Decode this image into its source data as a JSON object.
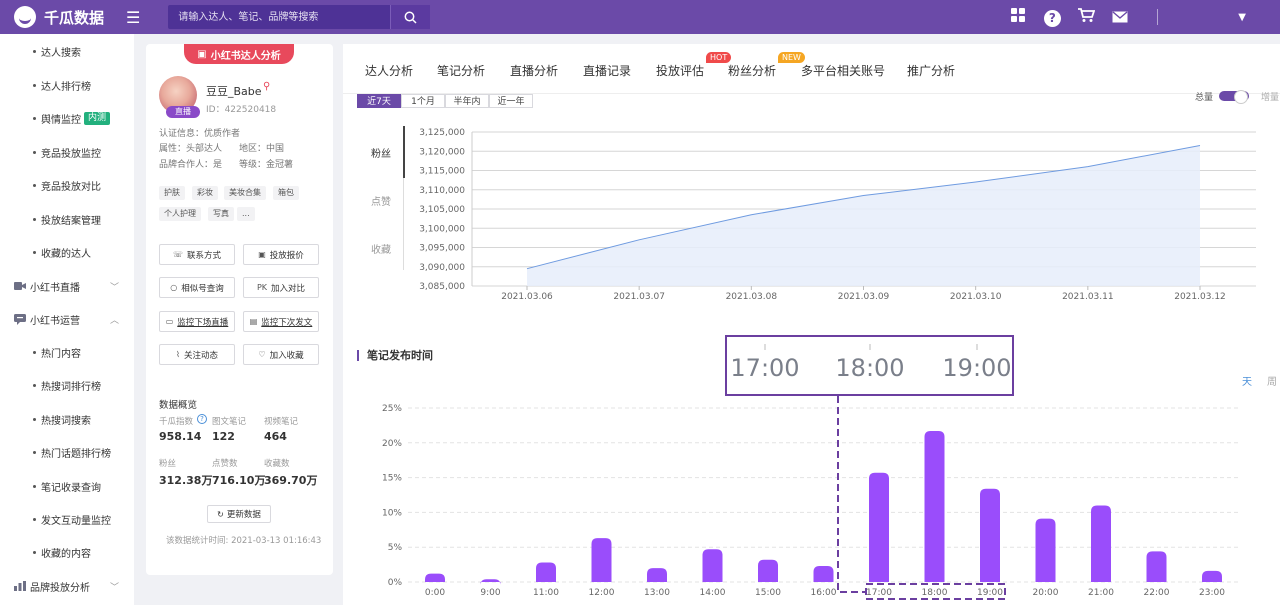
{
  "app": {
    "name": "千瓜数据"
  },
  "search": {
    "placeholder": "请输入达人、笔记、品牌等搜索"
  },
  "sidebar": {
    "items": [
      {
        "label": "达人搜索",
        "type": "sub"
      },
      {
        "label": "达人排行榜",
        "type": "sub"
      },
      {
        "label": "舆情监控",
        "type": "sub",
        "badge": "内测"
      },
      {
        "label": "竞品投放监控",
        "type": "sub"
      },
      {
        "label": "竞品投放对比",
        "type": "sub"
      },
      {
        "label": "投放结案管理",
        "type": "sub"
      },
      {
        "label": "收藏的达人",
        "type": "sub"
      },
      {
        "label": "小红书直播",
        "type": "group",
        "icon": "video-icon",
        "chevron": "down"
      },
      {
        "label": "小红书运营",
        "type": "group",
        "icon": "chat-icon",
        "chevron": "up"
      },
      {
        "label": "热门内容",
        "type": "sub"
      },
      {
        "label": "热搜词排行榜",
        "type": "sub"
      },
      {
        "label": "热搜词搜索",
        "type": "sub"
      },
      {
        "label": "热门话题排行榜",
        "type": "sub"
      },
      {
        "label": "笔记收录查询",
        "type": "sub"
      },
      {
        "label": "发文互动量监控",
        "type": "sub"
      },
      {
        "label": "收藏的内容",
        "type": "sub"
      },
      {
        "label": "品牌投放分析",
        "type": "group",
        "icon": "chart-icon",
        "chevron": "down"
      }
    ]
  },
  "profile": {
    "tag": "小红书达人分析",
    "name": "豆豆_Babe",
    "id": "ID：422520418",
    "avatar_badge": "直播",
    "cert": "认证信息：优质作者",
    "attr": "属性：头部达人",
    "region": "地区：中国",
    "brand_partner": "品牌合作人：是",
    "level": "等级：金冠薯",
    "tags": [
      "护肤",
      "彩妆",
      "美妆合集",
      "箱包",
      "个人护理",
      "写真",
      "..."
    ],
    "buttons": {
      "contact": "联系方式",
      "quote": "投放报价",
      "similar": "相似号查询",
      "compare": "加入对比",
      "monitor_live": "监控下场直播",
      "monitor_post": "监控下次发文",
      "follow": "关注动态",
      "favorite": "加入收藏"
    },
    "overview_title": "数据概览",
    "stats": [
      {
        "label": "千瓜指数",
        "value": "958.14"
      },
      {
        "label": "图文笔记",
        "value": "122"
      },
      {
        "label": "视频笔记",
        "value": "464"
      },
      {
        "label": "粉丝",
        "value": "312.38万"
      },
      {
        "label": "点赞数",
        "value": "716.10万"
      },
      {
        "label": "收藏数",
        "value": "369.70万"
      }
    ],
    "update_button": "更新数据",
    "update_time": "该数据统计时间: 2021-03-13 01:16:43"
  },
  "tabs": [
    {
      "label": "达人分析"
    },
    {
      "label": "笔记分析",
      "active": true
    },
    {
      "label": "直播分析"
    },
    {
      "label": "直播记录"
    },
    {
      "label": "投放评估",
      "flag": "HOT",
      "flag_color": "#f04a4a"
    },
    {
      "label": "粉丝分析",
      "flag": "NEW",
      "flag_color": "#f5a623"
    },
    {
      "label": "多平台相关账号"
    },
    {
      "label": "推广分析"
    }
  ],
  "range": {
    "options": [
      "近7天",
      "1个月",
      "半年内",
      "近一年"
    ],
    "active": 0
  },
  "toggle": {
    "label": "总量",
    "alt": "增量"
  },
  "metrics": [
    {
      "label": "粉丝",
      "active": true
    },
    {
      "label": "点赞",
      "active": false
    },
    {
      "label": "收藏",
      "active": false
    }
  ],
  "post_section": {
    "title": "笔记发布时间",
    "day": "天",
    "week": "周"
  },
  "chart_data": [
    {
      "type": "area",
      "x": [
        "2021.03.06",
        "2021.03.07",
        "2021.03.08",
        "2021.03.09",
        "2021.03.10",
        "2021.03.11",
        "2021.03.12"
      ],
      "values": [
        3089500,
        3097000,
        3103500,
        3108500,
        3112000,
        3116000,
        3121500
      ],
      "yticks": [
        "3,085,000",
        "3,090,000",
        "3,095,000",
        "3,100,000",
        "3,105,000",
        "3,110,000",
        "3,115,000",
        "3,120,000",
        "3,125,000"
      ],
      "ylim": [
        3085000,
        3125000
      ],
      "color": "#6f9be0"
    },
    {
      "type": "bar",
      "categories": [
        "0:00",
        "9:00",
        "11:00",
        "12:00",
        "13:00",
        "14:00",
        "15:00",
        "16:00",
        "17:00",
        "18:00",
        "19:00",
        "20:00",
        "21:00",
        "22:00",
        "23:00"
      ],
      "values": [
        1.2,
        0.4,
        2.8,
        6.3,
        2.0,
        4.7,
        3.2,
        2.3,
        15.7,
        21.7,
        13.4,
        9.1,
        11.0,
        4.4,
        1.6
      ],
      "yticks": [
        "0%",
        "5%",
        "10%",
        "15%",
        "20%",
        "25%"
      ],
      "ylim": [
        0,
        25
      ],
      "color": "#9a4dfb",
      "zoom_callout": [
        "17:00",
        "18:00",
        "19:00"
      ]
    }
  ]
}
